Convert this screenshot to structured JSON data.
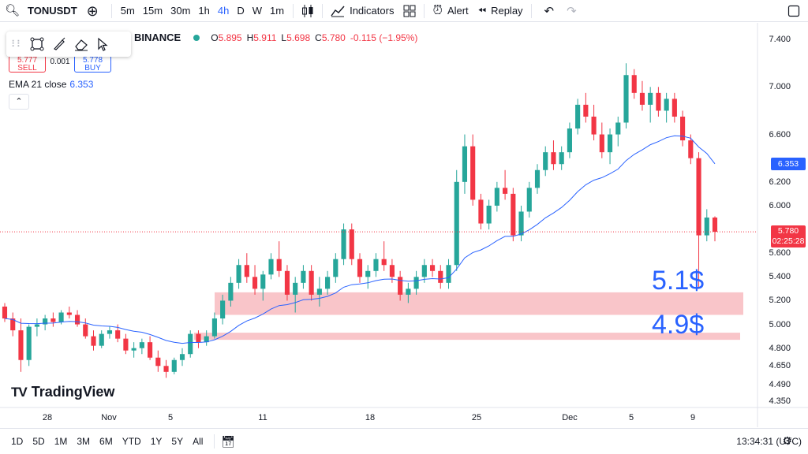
{
  "toolbar": {
    "symbol": "TONUSDT",
    "intervals": [
      "5m",
      "15m",
      "30m",
      "1h",
      "4h",
      "D",
      "W",
      "1m"
    ],
    "active_interval": "4h",
    "indicators_label": "Indicators",
    "alert_label": "Alert",
    "replay_label": "Replay"
  },
  "legend": {
    "exchange": "BINANCE",
    "o_key": "O",
    "o_val": "5.895",
    "h_key": "H",
    "h_val": "5.911",
    "l_key": "L",
    "l_val": "5.698",
    "c_key": "C",
    "c_val": "5.780",
    "change": "-0.115 (−1.95%)"
  },
  "trade": {
    "sell_price": "5.777",
    "sell_label": "SELL",
    "spread": "0.001",
    "buy_price": "5.778",
    "buy_label": "BUY"
  },
  "ema": {
    "label": "EMA 21 close",
    "value": "6.353"
  },
  "price_axis": [
    "7.400",
    "7.000",
    "6.600",
    "6.200",
    "6.000",
    "5.600",
    "5.400",
    "5.200",
    "5.000",
    "4.800",
    "4.650",
    "4.490",
    "4.350"
  ],
  "price_tags": {
    "ema_value": "6.353",
    "last_price": "5.780",
    "countdown": "02:25:28",
    "ema_color": "#2962ff",
    "last_color": "#f23645"
  },
  "annotations": {
    "zone_upper": "5.1$",
    "zone_lower": "4.9$"
  },
  "time_axis": [
    "28",
    "Nov",
    "5",
    "11",
    "18",
    "25",
    "Dec",
    "5",
    "9"
  ],
  "ranges": [
    "1D",
    "5D",
    "1M",
    "3M",
    "6M",
    "YTD",
    "1Y",
    "5Y",
    "All"
  ],
  "clock": "13:34:31 (UTC)",
  "brand": "TradingView",
  "colors": {
    "up": "#26a69a",
    "down": "#f23645",
    "ema": "#2962ff",
    "zone": "#f8bbc0"
  },
  "chart_data": {
    "type": "candlestick",
    "symbol": "TONUSDT",
    "interval": "4h",
    "ylim": [
      4.3,
      7.5
    ],
    "x_ticks": [
      "28",
      "Nov",
      "5",
      "11",
      "18",
      "25",
      "Dec",
      "5",
      "9"
    ],
    "zones": [
      {
        "label": "5.1$",
        "from": 5.08,
        "to": 5.27
      },
      {
        "label": "4.9$",
        "from": 4.87,
        "to": 4.93
      }
    ],
    "ohlc": [
      [
        5.15,
        5.18,
        5.02,
        5.05
      ],
      [
        5.05,
        5.1,
        4.9,
        4.95
      ],
      [
        4.95,
        5.05,
        4.6,
        4.7
      ],
      [
        4.7,
        5.0,
        4.65,
        4.98
      ],
      [
        4.98,
        5.05,
        4.9,
        5.0
      ],
      [
        5.0,
        5.08,
        4.95,
        5.05
      ],
      [
        5.05,
        5.1,
        4.98,
        5.02
      ],
      [
        5.02,
        5.12,
        5.0,
        5.1
      ],
      [
        5.1,
        5.15,
        5.05,
        5.08
      ],
      [
        5.08,
        5.12,
        4.98,
        5.0
      ],
      [
        5.0,
        5.05,
        4.88,
        4.9
      ],
      [
        4.9,
        4.95,
        4.78,
        4.82
      ],
      [
        4.82,
        4.95,
        4.8,
        4.92
      ],
      [
        4.92,
        4.98,
        4.88,
        4.95
      ],
      [
        4.95,
        5.0,
        4.85,
        4.88
      ],
      [
        4.88,
        4.92,
        4.75,
        4.78
      ],
      [
        4.78,
        4.85,
        4.72,
        4.8
      ],
      [
        4.8,
        4.88,
        4.75,
        4.85
      ],
      [
        4.85,
        4.9,
        4.7,
        4.72
      ],
      [
        4.72,
        4.78,
        4.6,
        4.65
      ],
      [
        4.65,
        4.7,
        4.55,
        4.6
      ],
      [
        4.6,
        4.72,
        4.58,
        4.7
      ],
      [
        4.7,
        4.8,
        4.65,
        4.75
      ],
      [
        4.75,
        4.95,
        4.72,
        4.92
      ],
      [
        4.92,
        4.95,
        4.8,
        4.85
      ],
      [
        4.85,
        4.95,
        4.82,
        4.9
      ],
      [
        4.9,
        5.1,
        4.88,
        5.05
      ],
      [
        5.05,
        5.25,
        5.0,
        5.2
      ],
      [
        5.2,
        5.4,
        5.15,
        5.35
      ],
      [
        5.35,
        5.55,
        5.3,
        5.5
      ],
      [
        5.5,
        5.6,
        5.35,
        5.4
      ],
      [
        5.4,
        5.5,
        5.25,
        5.3
      ],
      [
        5.3,
        5.45,
        5.2,
        5.42
      ],
      [
        5.42,
        5.6,
        5.38,
        5.55
      ],
      [
        5.55,
        5.7,
        5.4,
        5.45
      ],
      [
        5.45,
        5.5,
        5.2,
        5.25
      ],
      [
        5.25,
        5.4,
        5.1,
        5.35
      ],
      [
        5.35,
        5.5,
        5.3,
        5.45
      ],
      [
        5.45,
        5.5,
        5.2,
        5.25
      ],
      [
        5.25,
        5.4,
        5.15,
        5.3
      ],
      [
        5.3,
        5.45,
        5.25,
        5.4
      ],
      [
        5.4,
        5.6,
        5.35,
        5.55
      ],
      [
        5.55,
        5.85,
        5.5,
        5.8
      ],
      [
        5.8,
        5.85,
        5.5,
        5.55
      ],
      [
        5.55,
        5.6,
        5.35,
        5.4
      ],
      [
        5.4,
        5.5,
        5.3,
        5.45
      ],
      [
        5.45,
        5.6,
        5.4,
        5.55
      ],
      [
        5.55,
        5.7,
        5.45,
        5.5
      ],
      [
        5.5,
        5.55,
        5.35,
        5.4
      ],
      [
        5.4,
        5.45,
        5.2,
        5.25
      ],
      [
        5.25,
        5.35,
        5.18,
        5.3
      ],
      [
        5.3,
        5.45,
        5.25,
        5.4
      ],
      [
        5.4,
        5.55,
        5.35,
        5.5
      ],
      [
        5.5,
        5.55,
        5.4,
        5.45
      ],
      [
        5.45,
        5.5,
        5.3,
        5.35
      ],
      [
        5.35,
        5.55,
        5.3,
        5.5
      ],
      [
        5.5,
        6.3,
        5.45,
        6.2
      ],
      [
        6.2,
        6.6,
        6.1,
        6.5
      ],
      [
        6.5,
        6.6,
        6.0,
        6.05
      ],
      [
        6.05,
        6.1,
        5.8,
        5.85
      ],
      [
        5.85,
        6.05,
        5.8,
        6.0
      ],
      [
        6.0,
        6.2,
        5.95,
        6.15
      ],
      [
        6.15,
        6.3,
        6.05,
        6.1
      ],
      [
        6.1,
        6.15,
        5.7,
        5.75
      ],
      [
        5.75,
        6.0,
        5.7,
        5.95
      ],
      [
        5.95,
        6.2,
        5.9,
        6.15
      ],
      [
        6.15,
        6.35,
        6.1,
        6.3
      ],
      [
        6.3,
        6.5,
        6.25,
        6.45
      ],
      [
        6.45,
        6.55,
        6.3,
        6.35
      ],
      [
        6.35,
        6.5,
        6.3,
        6.45
      ],
      [
        6.45,
        6.7,
        6.4,
        6.65
      ],
      [
        6.65,
        6.9,
        6.6,
        6.85
      ],
      [
        6.85,
        6.95,
        6.7,
        6.75
      ],
      [
        6.75,
        6.85,
        6.55,
        6.6
      ],
      [
        6.6,
        6.7,
        6.4,
        6.45
      ],
      [
        6.45,
        6.65,
        6.35,
        6.6
      ],
      [
        6.6,
        6.75,
        6.5,
        6.7
      ],
      [
        6.7,
        7.2,
        6.65,
        7.1
      ],
      [
        7.1,
        7.15,
        6.9,
        6.95
      ],
      [
        6.95,
        7.05,
        6.8,
        6.85
      ],
      [
        6.85,
        7.0,
        6.7,
        6.95
      ],
      [
        6.95,
        7.0,
        6.75,
        6.8
      ],
      [
        6.8,
        6.95,
        6.7,
        6.9
      ],
      [
        6.9,
        6.95,
        6.7,
        6.75
      ],
      [
        6.75,
        6.8,
        6.5,
        6.55
      ],
      [
        6.55,
        6.6,
        6.35,
        6.4
      ],
      [
        6.4,
        6.45,
        5.3,
        5.75
      ],
      [
        5.75,
        5.97,
        5.7,
        5.9
      ],
      [
        5.9,
        5.91,
        5.7,
        5.78
      ]
    ],
    "ema21_last": 6.353
  }
}
